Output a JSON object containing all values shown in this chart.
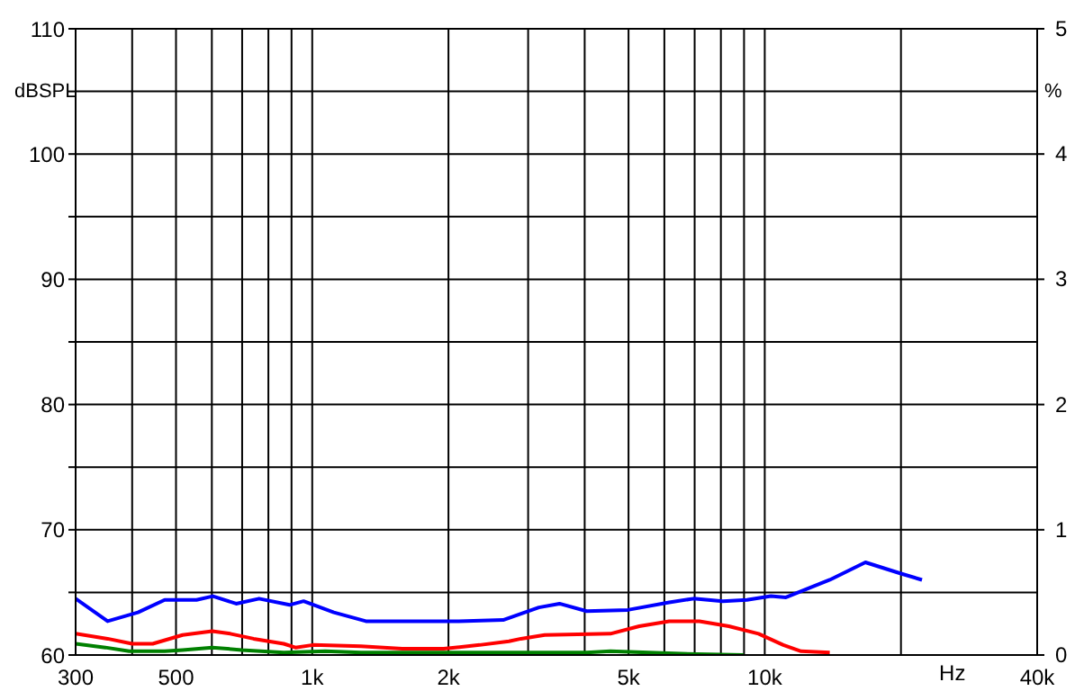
{
  "chart_data": {
    "type": "line",
    "xlabel": "Hz",
    "ylabel": "dBSPL",
    "y2label": "%",
    "log": "x",
    "grid": true,
    "legend": false,
    "marker": "none",
    "line_style": "solid",
    "xlim": [
      300,
      40000
    ],
    "xticks": [
      300,
      {
        "value": 400,
        "label": null
      },
      500,
      {
        "value": 600,
        "label": null
      },
      {
        "value": 700,
        "label": null
      },
      {
        "value": 800,
        "label": null
      },
      {
        "value": 900,
        "label": null
      },
      {
        "value": 1000,
        "label": "1k"
      },
      {
        "value": 2000,
        "label": "2k"
      },
      {
        "value": 3000,
        "label": null
      },
      {
        "value": 4000,
        "label": null
      },
      {
        "value": 5000,
        "label": "5k"
      },
      {
        "value": 6000,
        "label": null
      },
      {
        "value": 7000,
        "label": null
      },
      {
        "value": 8000,
        "label": null
      },
      {
        "value": 9000,
        "label": null
      },
      {
        "value": 10000,
        "label": "10k"
      },
      {
        "value": 20000,
        "label": null
      },
      {
        "value": 40000,
        "label": "40k"
      }
    ],
    "ylim": [
      60,
      110
    ],
    "yticks": [
      60,
      {
        "value": 65,
        "label": null
      },
      70,
      {
        "value": 75,
        "label": null
      },
      80,
      {
        "value": 85,
        "label": null
      },
      90,
      {
        "value": 95,
        "label": null
      },
      100,
      {
        "value": 105,
        "label": null
      },
      110
    ],
    "y2lim": [
      0,
      5
    ],
    "y2ticks": [
      0,
      1,
      2,
      3,
      4,
      5
    ],
    "series": [
      {
        "color": "#0000ff",
        "axis": "y2",
        "x": [
          300,
          353,
          412,
          472,
          555,
          603,
          679,
          763,
          891,
          957,
          1116,
          1314,
          1681,
          2108,
          2642,
          3168,
          3519,
          4040,
          4980,
          6150,
          6960,
          8080,
          9130,
          10320,
          11140,
          13920,
          16690,
          20000,
          22260
        ],
        "values": [
          0.45,
          0.27,
          0.34,
          0.44,
          0.44,
          0.47,
          0.41,
          0.45,
          0.4,
          0.43,
          0.34,
          0.27,
          0.27,
          0.27,
          0.28,
          0.38,
          0.41,
          0.35,
          0.36,
          0.42,
          0.45,
          0.43,
          0.44,
          0.47,
          0.46,
          0.6,
          0.74,
          0.65,
          0.6
        ]
      },
      {
        "color": "#ff0000",
        "axis": "y2",
        "x": [
          300,
          353,
          400,
          444,
          517,
          601,
          659,
          742,
          865,
          918,
          1004,
          1282,
          1581,
          1953,
          2344,
          2721,
          2892,
          3264,
          4560,
          5280,
          6150,
          7170,
          8330,
          9690,
          10990,
          12030,
          13920
        ],
        "values": [
          0.17,
          0.13,
          0.09,
          0.09,
          0.16,
          0.19,
          0.17,
          0.13,
          0.09,
          0.06,
          0.08,
          0.07,
          0.05,
          0.05,
          0.08,
          0.11,
          0.13,
          0.16,
          0.17,
          0.23,
          0.27,
          0.27,
          0.23,
          0.17,
          0.08,
          0.03,
          0.02
        ]
      },
      {
        "color": "#008000",
        "axis": "y2",
        "x": [
          300,
          349,
          394,
          472,
          517,
          601,
          699,
          865,
          1069,
          1282,
          3168,
          4040,
          4560,
          6540,
          8980
        ],
        "values": [
          0.09,
          0.06,
          0.03,
          0.03,
          0.04,
          0.06,
          0.04,
          0.02,
          0.03,
          0.02,
          0.02,
          0.02,
          0.03,
          0.01,
          0.0
        ]
      }
    ]
  }
}
